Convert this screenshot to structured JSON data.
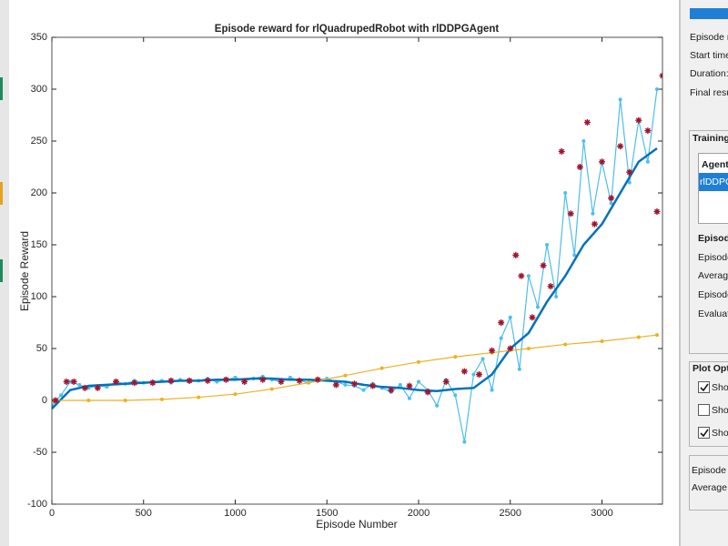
{
  "chart_data": {
    "type": "line",
    "title": "Episode reward for rlQuadrupedRobot with rlDDPGAgent",
    "x_label": "Episode Number",
    "y_label": "Episode Reward",
    "xlim": [
      0,
      3330
    ],
    "ylim": [
      -100,
      350
    ],
    "xticks": [
      0,
      500,
      1000,
      1500,
      2000,
      2500,
      3000
    ],
    "yticks": [
      -100,
      -50,
      0,
      50,
      100,
      150,
      200,
      250,
      300,
      350
    ],
    "grid": false,
    "series": [
      {
        "color": "#4dbeee",
        "marker": "dot",
        "line": true,
        "x": [
          0,
          50,
          100,
          150,
          200,
          250,
          300,
          350,
          400,
          450,
          500,
          550,
          600,
          650,
          700,
          750,
          800,
          850,
          900,
          950,
          1000,
          1050,
          1100,
          1150,
          1200,
          1250,
          1300,
          1350,
          1400,
          1450,
          1500,
          1550,
          1600,
          1650,
          1700,
          1750,
          1800,
          1850,
          1900,
          1950,
          2000,
          2050,
          2100,
          2150,
          2200,
          2250,
          2300,
          2350,
          2400,
          2450,
          2500,
          2550,
          2600,
          2650,
          2700,
          2750,
          2800,
          2850,
          2900,
          2950,
          3000,
          3050,
          3100,
          3150,
          3200,
          3250,
          3300
        ],
        "values": [
          -5,
          5,
          18,
          15,
          12,
          14,
          13,
          18,
          16,
          19,
          17,
          18,
          19,
          17,
          20,
          18,
          19,
          21,
          18,
          20,
          22,
          19,
          21,
          23,
          20,
          18,
          22,
          19,
          17,
          20,
          21,
          18,
          15,
          14,
          10,
          16,
          12,
          8,
          15,
          2,
          18,
          10,
          -5,
          20,
          5,
          -40,
          25,
          40,
          10,
          60,
          80,
          30,
          120,
          90,
          150,
          100,
          200,
          140,
          250,
          180,
          230,
          190,
          290,
          210,
          270,
          230,
          300
        ]
      },
      {
        "color": "#0072bd",
        "marker": "none",
        "line": true,
        "x": [
          0,
          100,
          200,
          300,
          400,
          500,
          600,
          700,
          800,
          900,
          1000,
          1100,
          1200,
          1300,
          1400,
          1500,
          1600,
          1700,
          1800,
          1900,
          2000,
          2100,
          2200,
          2300,
          2400,
          2500,
          2600,
          2700,
          2800,
          2900,
          3000,
          3100,
          3200,
          3300
        ],
        "values": [
          -8,
          10,
          14,
          15,
          16,
          17,
          18,
          19,
          19,
          20,
          20,
          21,
          21,
          20,
          20,
          19,
          18,
          15,
          13,
          12,
          10,
          9,
          11,
          12,
          25,
          50,
          65,
          95,
          120,
          150,
          170,
          200,
          230,
          243
        ]
      },
      {
        "color": "#edb120",
        "marker": "dot",
        "line": true,
        "x": [
          0,
          200,
          400,
          600,
          800,
          1000,
          1200,
          1400,
          1600,
          1800,
          2000,
          2200,
          2400,
          2600,
          2800,
          3000,
          3200,
          3300
        ],
        "values": [
          0,
          0,
          0,
          1,
          3,
          6,
          11,
          17,
          24,
          31,
          37,
          42,
          46,
          50,
          54,
          57,
          61,
          63
        ]
      },
      {
        "color": "#a2142f",
        "marker": "asterisk",
        "line": false,
        "x": [
          20,
          80,
          120,
          180,
          250,
          350,
          450,
          550,
          650,
          750,
          850,
          950,
          1050,
          1150,
          1250,
          1350,
          1450,
          1550,
          1650,
          1750,
          1850,
          1950,
          2050,
          2150,
          2250,
          2330,
          2400,
          2450,
          2500,
          2530,
          2560,
          2620,
          2680,
          2720,
          2780,
          2830,
          2880,
          2920,
          2960,
          3000,
          3050,
          3100,
          3150,
          3200,
          3250,
          3300,
          3330
        ],
        "values": [
          0,
          18,
          18,
          12,
          12,
          18,
          17,
          17,
          19,
          19,
          19,
          20,
          18,
          20,
          18,
          19,
          20,
          15,
          16,
          14,
          10,
          14,
          8,
          18,
          28,
          25,
          48,
          75,
          50,
          140,
          120,
          80,
          130,
          110,
          240,
          180,
          225,
          268,
          170,
          230,
          195,
          245,
          220,
          270,
          260,
          182,
          313
        ]
      }
    ]
  },
  "panel": {
    "status_labels": [
      "Episode n",
      "Start time",
      "Duration:",
      "Final resu"
    ],
    "training_title": "Training",
    "agent_header": "Agent",
    "agent_row": "rlDDPG",
    "info_title": "Episod",
    "info_labels": [
      "Episode",
      "Average",
      "Episode",
      "Evaluat"
    ],
    "plot_options_title": "Plot Opt",
    "options": [
      {
        "label": "Show",
        "checked": true
      },
      {
        "label": "Show",
        "checked": false
      },
      {
        "label": "Show",
        "checked": true
      }
    ],
    "bottom_labels": [
      "Episode",
      "Average"
    ]
  }
}
